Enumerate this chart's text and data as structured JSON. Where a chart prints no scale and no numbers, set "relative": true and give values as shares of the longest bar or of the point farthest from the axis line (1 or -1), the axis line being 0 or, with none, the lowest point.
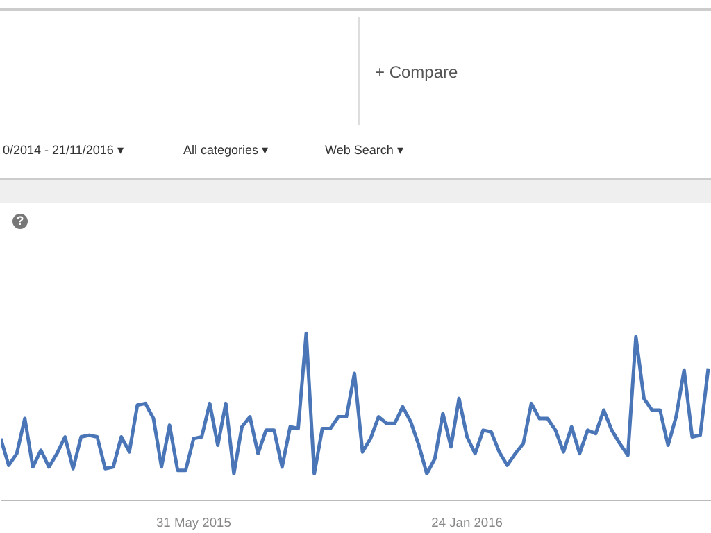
{
  "chart_data": {
    "type": "line",
    "relative": true,
    "annotations": [
      "+  Compare",
      "0/2014 - 21/11/2016 ▾",
      "All categories ▾",
      "Web Search ▾",
      "?"
    ],
    "x": [
      "2014-12-14",
      "2014-12-21",
      "2014-12-28",
      "2015-01-04",
      "2015-01-11",
      "2015-01-18",
      "2015-01-25",
      "2015-02-01",
      "2015-02-08",
      "2015-02-15",
      "2015-02-22",
      "2015-03-01",
      "2015-03-08",
      "2015-03-15",
      "2015-03-22",
      "2015-03-29",
      "2015-04-05",
      "2015-04-12",
      "2015-04-19",
      "2015-04-26",
      "2015-05-03",
      "2015-05-10",
      "2015-05-17",
      "2015-05-24",
      "2015-05-31",
      "2015-06-07",
      "2015-06-14",
      "2015-06-21",
      "2015-06-28",
      "2015-07-05",
      "2015-07-12",
      "2015-07-19",
      "2015-07-26",
      "2015-08-02",
      "2015-08-09",
      "2015-08-16",
      "2015-08-23",
      "2015-08-30",
      "2015-09-06",
      "2015-09-13",
      "2015-09-20",
      "2015-09-27",
      "2015-10-04",
      "2015-10-11",
      "2015-10-18",
      "2015-10-25",
      "2015-11-01",
      "2015-11-08",
      "2015-11-15",
      "2015-11-22",
      "2015-11-29",
      "2015-12-06",
      "2015-12-13",
      "2015-12-20",
      "2015-12-27",
      "2016-01-03",
      "2016-01-10",
      "2016-01-17",
      "2016-01-24",
      "2016-01-31",
      "2016-02-07",
      "2016-02-14",
      "2016-02-21",
      "2016-02-28",
      "2016-03-06",
      "2016-03-13",
      "2016-03-20",
      "2016-03-27",
      "2016-04-03",
      "2016-04-10",
      "2016-04-17",
      "2016-04-24",
      "2016-05-01",
      "2016-05-08",
      "2016-05-15",
      "2016-05-22",
      "2016-05-29",
      "2016-06-05",
      "2016-06-12",
      "2016-06-19",
      "2016-06-26",
      "2016-07-03",
      "2016-07-10",
      "2016-07-17",
      "2016-07-24",
      "2016-07-31",
      "2016-08-07",
      "2016-08-14",
      "2016-08-21"
    ],
    "series": [
      {
        "color": "#4a76b8",
        "values": [
          0.37,
          0.21,
          0.28,
          0.49,
          0.2,
          0.3,
          0.2,
          0.28,
          0.38,
          0.19,
          0.38,
          0.39,
          0.38,
          0.19,
          0.2,
          0.38,
          0.29,
          0.57,
          0.58,
          0.49,
          0.2,
          0.45,
          0.18,
          0.18,
          0.37,
          0.38,
          0.58,
          0.33,
          0.58,
          0.16,
          0.44,
          0.5,
          0.28,
          0.42,
          0.42,
          0.2,
          0.44,
          0.43,
          1.0,
          0.16,
          0.43,
          0.43,
          0.5,
          0.5,
          0.76,
          0.29,
          0.37,
          0.5,
          0.46,
          0.46,
          0.56,
          0.47,
          0.33,
          0.16,
          0.25,
          0.52,
          0.32,
          0.61,
          0.38,
          0.28,
          0.42,
          0.41,
          0.29,
          0.21,
          0.28,
          0.34,
          0.58,
          0.49,
          0.49,
          0.42,
          0.29,
          0.44,
          0.28,
          0.42,
          0.4,
          0.54,
          0.42,
          0.34,
          0.27,
          0.98,
          0.61,
          0.54,
          0.54,
          0.33,
          0.5,
          0.78,
          0.38,
          0.39,
          0.79
        ]
      }
    ],
    "xlim": [
      "2014-12-14",
      "2016-08-24"
    ],
    "xticks": [
      {
        "value": "2015-05-31",
        "label": "31 May 2015"
      },
      {
        "value": "2016-01-24",
        "label": "24 Jan 2016"
      }
    ],
    "marker": "none",
    "line_style": "solid"
  }
}
